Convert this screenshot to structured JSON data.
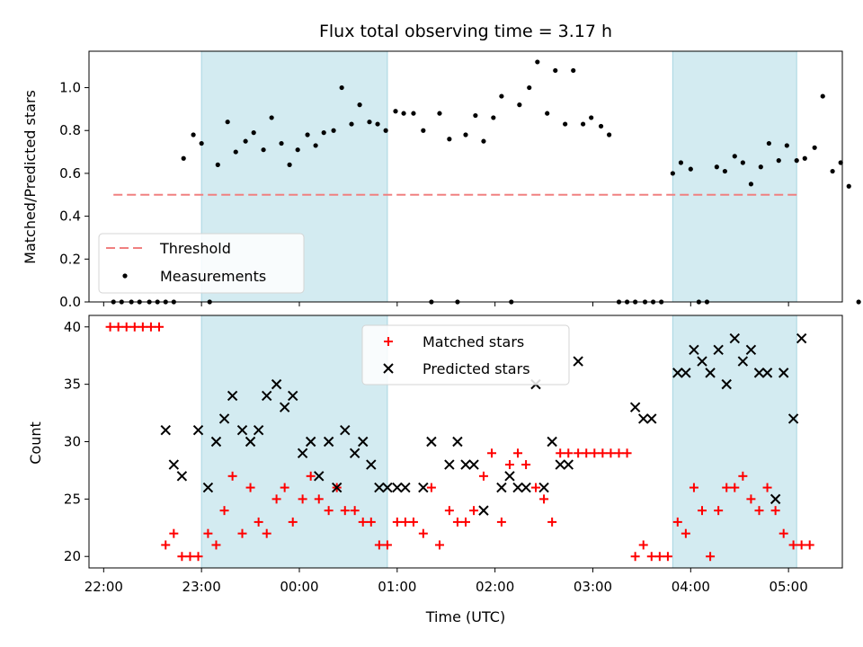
{
  "chart_data": [
    {
      "type": "scatter",
      "title": "Flux total observing time = 3.17 h",
      "ylabel": "Matched/Predicted stars",
      "xlabel": "",
      "xlim": [
        "21:51",
        "05:33"
      ],
      "ylim": [
        0,
        1.17
      ],
      "yticks": [
        "0.0",
        "0.2",
        "0.4",
        "0.6",
        "0.8",
        "1.0"
      ],
      "shaded_intervals": [
        [
          "23:00",
          "00:54"
        ],
        [
          "03:49",
          "05:05"
        ]
      ],
      "threshold": {
        "name": "Threshold",
        "value": 0.5,
        "x_start": "22:06",
        "x_end": "05:05",
        "color": "#f08080"
      },
      "series": [
        {
          "name": "Measurements",
          "color": "#000000",
          "points": [
            [
              "22:06",
              0
            ],
            [
              "22:11",
              0
            ],
            [
              "22:17",
              0
            ],
            [
              "22:22",
              0
            ],
            [
              "22:28",
              0
            ],
            [
              "22:33",
              0
            ],
            [
              "22:38",
              0
            ],
            [
              "22:43",
              0
            ],
            [
              "22:49",
              0.67
            ],
            [
              "22:55",
              0.78
            ],
            [
              "23:00",
              0.74
            ],
            [
              "23:05",
              0
            ],
            [
              "23:10",
              0.64
            ],
            [
              "23:16",
              0.84
            ],
            [
              "23:21",
              0.7
            ],
            [
              "23:27",
              0.75
            ],
            [
              "23:32",
              0.79
            ],
            [
              "23:38",
              0.71
            ],
            [
              "23:43",
              0.86
            ],
            [
              "23:49",
              0.74
            ],
            [
              "23:54",
              0.64
            ],
            [
              "23:59",
              0.71
            ],
            [
              "00:05",
              0.78
            ],
            [
              "00:10",
              0.73
            ],
            [
              "00:15",
              0.79
            ],
            [
              "00:21",
              0.8
            ],
            [
              "00:26",
              1.0
            ],
            [
              "00:32",
              0.83
            ],
            [
              "00:37",
              0.92
            ],
            [
              "00:43",
              0.84
            ],
            [
              "00:48",
              0.83
            ],
            [
              "00:53",
              0.8
            ],
            [
              "00:59",
              0.89
            ],
            [
              "01:04",
              0.88
            ],
            [
              "01:10",
              0.88
            ],
            [
              "01:16",
              0.8
            ],
            [
              "01:21",
              0
            ],
            [
              "01:26",
              0.88
            ],
            [
              "01:32",
              0.76
            ],
            [
              "01:37",
              0
            ],
            [
              "01:42",
              0.78
            ],
            [
              "01:48",
              0.87
            ],
            [
              "01:53",
              0.75
            ],
            [
              "01:59",
              0.86
            ],
            [
              "02:04",
              0.96
            ],
            [
              "02:10",
              0
            ],
            [
              "02:15",
              0.92
            ],
            [
              "02:21",
              1.0
            ],
            [
              "02:26",
              1.12
            ],
            [
              "02:32",
              0.88
            ],
            [
              "02:37",
              1.08
            ],
            [
              "02:43",
              0.83
            ],
            [
              "02:48",
              1.08
            ],
            [
              "02:54",
              0.83
            ],
            [
              "02:59",
              0.86
            ],
            [
              "03:05",
              0.82
            ],
            [
              "03:10",
              0.78
            ],
            [
              "03:16",
              0
            ],
            [
              "03:21",
              0
            ],
            [
              "03:26",
              0
            ],
            [
              "03:32",
              0
            ],
            [
              "03:37",
              0
            ],
            [
              "03:42",
              0
            ],
            [
              "03:49",
              0.6
            ],
            [
              "03:54",
              0.65
            ],
            [
              "04:00",
              0.62
            ],
            [
              "04:05",
              0
            ],
            [
              "04:10",
              0
            ],
            [
              "04:16",
              0.63
            ],
            [
              "04:21",
              0.61
            ],
            [
              "04:27",
              0.68
            ],
            [
              "04:32",
              0.65
            ],
            [
              "04:37",
              0.55
            ],
            [
              "04:43",
              0.63
            ],
            [
              "04:48",
              0.74
            ],
            [
              "04:54",
              0.66
            ],
            [
              "04:59",
              0.73
            ],
            [
              "05:05",
              0.66
            ],
            [
              "05:10",
              0.67
            ],
            [
              "05:16",
              0.72
            ],
            [
              "05:21",
              0.96
            ],
            [
              "05:27",
              0.61
            ],
            [
              "05:32",
              0.65
            ],
            [
              "05:37",
              0.54
            ],
            [
              "05:43",
              0
            ]
          ]
        }
      ],
      "legend": {
        "placement": "lower-left",
        "entries": [
          "Threshold",
          "Measurements"
        ]
      }
    },
    {
      "type": "scatter",
      "xlabel": "Time (UTC)",
      "ylabel": "Count",
      "xlim": [
        "21:51",
        "05:33"
      ],
      "ylim": [
        19,
        41
      ],
      "xticks": [
        "22:00",
        "23:00",
        "00:00",
        "01:00",
        "02:00",
        "03:00",
        "04:00",
        "05:00"
      ],
      "yticks": [
        "20",
        "25",
        "30",
        "35",
        "40"
      ],
      "shaded_intervals": [
        [
          "23:00",
          "00:54"
        ],
        [
          "03:49",
          "05:05"
        ]
      ],
      "series": [
        {
          "name": "Matched stars",
          "color": "#ff0000",
          "marker": "plus",
          "points": [
            [
              "22:04",
              40
            ],
            [
              "22:09",
              40
            ],
            [
              "22:14",
              40
            ],
            [
              "22:19",
              40
            ],
            [
              "22:24",
              40
            ],
            [
              "22:29",
              40
            ],
            [
              "22:34",
              40
            ],
            [
              "22:38",
              21
            ],
            [
              "22:43",
              22
            ],
            [
              "22:48",
              20
            ],
            [
              "22:53",
              20
            ],
            [
              "22:58",
              20
            ],
            [
              "23:04",
              22
            ],
            [
              "23:09",
              21
            ],
            [
              "23:14",
              24
            ],
            [
              "23:19",
              27
            ],
            [
              "23:25",
              22
            ],
            [
              "23:30",
              26
            ],
            [
              "23:35",
              23
            ],
            [
              "23:40",
              22
            ],
            [
              "23:46",
              25
            ],
            [
              "23:51",
              26
            ],
            [
              "23:56",
              23
            ],
            [
              "00:02",
              25
            ],
            [
              "00:07",
              27
            ],
            [
              "00:12",
              25
            ],
            [
              "00:18",
              24
            ],
            [
              "00:23",
              26
            ],
            [
              "00:28",
              24
            ],
            [
              "00:34",
              24
            ],
            [
              "00:39",
              23
            ],
            [
              "00:44",
              23
            ],
            [
              "00:49",
              21
            ],
            [
              "00:54",
              21
            ],
            [
              "01:00",
              23
            ],
            [
              "01:05",
              23
            ],
            [
              "01:10",
              23
            ],
            [
              "01:16",
              22
            ],
            [
              "01:21",
              26
            ],
            [
              "01:26",
              21
            ],
            [
              "01:32",
              24
            ],
            [
              "01:37",
              23
            ],
            [
              "01:42",
              23
            ],
            [
              "01:47",
              24
            ],
            [
              "01:53",
              27
            ],
            [
              "01:58",
              29
            ],
            [
              "02:04",
              23
            ],
            [
              "02:09",
              28
            ],
            [
              "02:14",
              29
            ],
            [
              "02:19",
              28
            ],
            [
              "02:25",
              26
            ],
            [
              "02:30",
              25
            ],
            [
              "02:35",
              23
            ],
            [
              "02:40",
              29
            ],
            [
              "02:45",
              29
            ],
            [
              "02:51",
              29
            ],
            [
              "02:56",
              29
            ],
            [
              "03:01",
              29
            ],
            [
              "03:06",
              29
            ],
            [
              "03:11",
              29
            ],
            [
              "03:16",
              29
            ],
            [
              "03:21",
              29
            ],
            [
              "03:26",
              20
            ],
            [
              "03:31",
              21
            ],
            [
              "03:36",
              20
            ],
            [
              "03:41",
              20
            ],
            [
              "03:46",
              20
            ],
            [
              "03:52",
              23
            ],
            [
              "03:57",
              22
            ],
            [
              "04:02",
              26
            ],
            [
              "04:07",
              24
            ],
            [
              "04:12",
              20
            ],
            [
              "04:17",
              24
            ],
            [
              "04:22",
              26
            ],
            [
              "04:27",
              26
            ],
            [
              "04:32",
              27
            ],
            [
              "04:37",
              25
            ],
            [
              "04:42",
              24
            ],
            [
              "04:47",
              26
            ],
            [
              "04:52",
              24
            ],
            [
              "04:57",
              22
            ],
            [
              "05:03",
              21
            ],
            [
              "05:08",
              21
            ],
            [
              "05:13",
              21
            ]
          ]
        },
        {
          "name": "Predicted stars",
          "color": "#000000",
          "marker": "x",
          "points": [
            [
              "22:38",
              31
            ],
            [
              "22:43",
              28
            ],
            [
              "22:48",
              27
            ],
            [
              "22:58",
              31
            ],
            [
              "23:04",
              26
            ],
            [
              "23:09",
              30
            ],
            [
              "23:14",
              32
            ],
            [
              "23:19",
              34
            ],
            [
              "23:25",
              31
            ],
            [
              "23:30",
              30
            ],
            [
              "23:35",
              31
            ],
            [
              "23:40",
              34
            ],
            [
              "23:46",
              35
            ],
            [
              "23:51",
              33
            ],
            [
              "23:56",
              34
            ],
            [
              "00:02",
              29
            ],
            [
              "00:07",
              30
            ],
            [
              "00:12",
              27
            ],
            [
              "00:18",
              30
            ],
            [
              "00:23",
              26
            ],
            [
              "00:28",
              31
            ],
            [
              "00:34",
              29
            ],
            [
              "00:39",
              30
            ],
            [
              "00:44",
              28
            ],
            [
              "00:49",
              26
            ],
            [
              "00:54",
              26
            ],
            [
              "01:00",
              26
            ],
            [
              "01:05",
              26
            ],
            [
              "01:16",
              26
            ],
            [
              "01:21",
              30
            ],
            [
              "01:32",
              28
            ],
            [
              "01:37",
              30
            ],
            [
              "01:42",
              28
            ],
            [
              "01:47",
              28
            ],
            [
              "01:53",
              24
            ],
            [
              "02:04",
              26
            ],
            [
              "02:09",
              27
            ],
            [
              "02:14",
              26
            ],
            [
              "02:19",
              26
            ],
            [
              "02:25",
              35
            ],
            [
              "02:30",
              26
            ],
            [
              "02:35",
              30
            ],
            [
              "02:40",
              28
            ],
            [
              "02:45",
              28
            ],
            [
              "02:51",
              37
            ],
            [
              "03:26",
              33
            ],
            [
              "03:31",
              32
            ],
            [
              "03:36",
              32
            ],
            [
              "03:52",
              36
            ],
            [
              "03:57",
              36
            ],
            [
              "04:02",
              38
            ],
            [
              "04:07",
              37
            ],
            [
              "04:12",
              36
            ],
            [
              "04:17",
              38
            ],
            [
              "04:22",
              35
            ],
            [
              "04:27",
              39
            ],
            [
              "04:32",
              37
            ],
            [
              "04:37",
              38
            ],
            [
              "04:42",
              36
            ],
            [
              "04:47",
              36
            ],
            [
              "04:52",
              25
            ],
            [
              "04:57",
              36
            ],
            [
              "05:03",
              32
            ],
            [
              "05:08",
              39
            ]
          ]
        }
      ],
      "legend": {
        "placement": "top-center",
        "entries": [
          "Matched stars",
          "Predicted stars"
        ]
      }
    }
  ]
}
